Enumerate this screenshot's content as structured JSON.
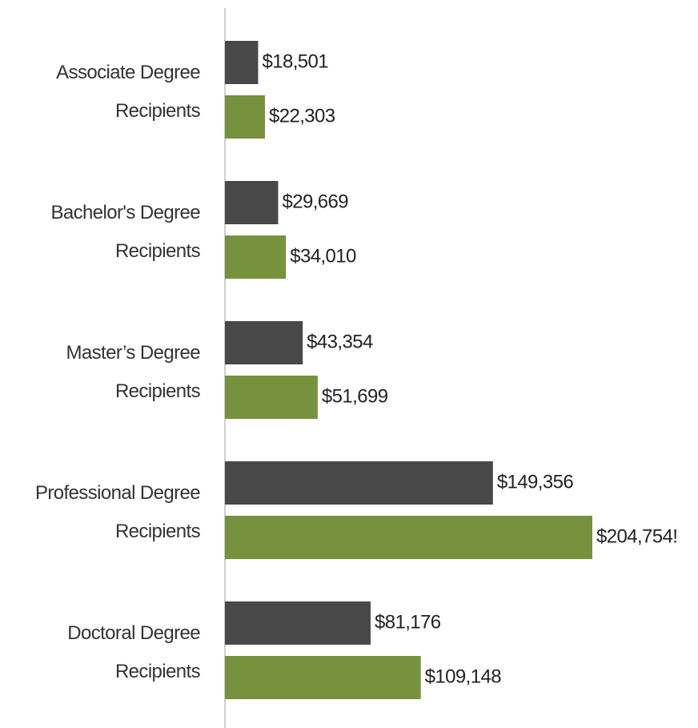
{
  "chart_data": {
    "type": "bar",
    "orientation": "horizontal",
    "categories": [
      "Associate Degree\nRecipients",
      "Bachelor's Degree\nRecipients",
      "Master’s Degree\nRecipients",
      "Professional Degree\nRecipients",
      "Doctoral Degree\nRecipients"
    ],
    "series": [
      {
        "color": "#484848",
        "values": [
          18501,
          29669,
          43354,
          149356,
          81176
        ],
        "value_labels": [
          "$18,501",
          "$29,669",
          "$43,354",
          "$149,356",
          "$81,176"
        ]
      },
      {
        "color": "#76923c",
        "values": [
          22303,
          34010,
          51699,
          204754,
          109148
        ],
        "value_labels": [
          "$22,303",
          "$34,010",
          "$51,699",
          "$204,754!",
          "$109,148"
        ]
      }
    ]
  }
}
